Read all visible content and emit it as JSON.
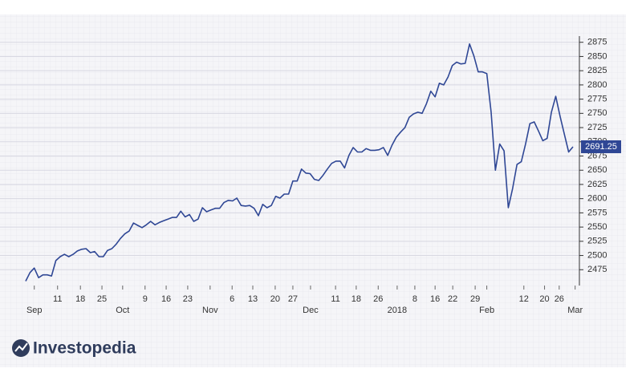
{
  "chart_data": {
    "type": "line",
    "brand": "Investopedia",
    "color": "#2f4795",
    "values": [
      2455,
      2470,
      2478,
      2461,
      2466,
      2466,
      2464,
      2491,
      2498,
      2502,
      2498,
      2502,
      2508,
      2511,
      2512,
      2505,
      2507,
      2498,
      2498,
      2509,
      2512,
      2520,
      2530,
      2538,
      2543,
      2557,
      2553,
      2549,
      2554,
      2560,
      2554,
      2558,
      2561,
      2564,
      2567,
      2567,
      2578,
      2568,
      2572,
      2560,
      2564,
      2584,
      2577,
      2580,
      2583,
      2583,
      2593,
      2597,
      2596,
      2601,
      2588,
      2587,
      2588,
      2583,
      2570,
      2590,
      2584,
      2588,
      2604,
      2601,
      2608,
      2608,
      2631,
      2631,
      2652,
      2645,
      2644,
      2634,
      2632,
      2641,
      2652,
      2662,
      2666,
      2666,
      2654,
      2676,
      2690,
      2682,
      2682,
      2688,
      2685,
      2685,
      2686,
      2690,
      2676,
      2694,
      2708,
      2717,
      2725,
      2743,
      2749,
      2752,
      2750,
      2767,
      2789,
      2779,
      2803,
      2800,
      2814,
      2834,
      2840,
      2837,
      2838,
      2872,
      2851,
      2823,
      2823,
      2820,
      2752,
      2650,
      2696,
      2684,
      2584,
      2618,
      2660,
      2665,
      2696,
      2732,
      2735,
      2719,
      2702,
      2706,
      2752,
      2780,
      2745,
      2713,
      2682,
      2691.25
    ],
    "xlim": [
      0,
      127
    ],
    "xticks": [
      {
        "value": 2,
        "label": "Sep"
      },
      {
        "value": 7.4,
        "label": "11"
      },
      {
        "value": 12.7,
        "label": "18"
      },
      {
        "value": 17.7,
        "label": "25"
      },
      {
        "value": 22.5,
        "label": "Oct"
      },
      {
        "value": 27.7,
        "label": "9"
      },
      {
        "value": 32.6,
        "label": "16"
      },
      {
        "value": 37.6,
        "label": "23"
      },
      {
        "value": 42.8,
        "label": "Nov"
      },
      {
        "value": 47.9,
        "label": "6"
      },
      {
        "value": 52.7,
        "label": "13"
      },
      {
        "value": 57.9,
        "label": "20"
      },
      {
        "value": 62,
        "label": "27"
      },
      {
        "value": 66.1,
        "label": "Dec"
      },
      {
        "value": 71.9,
        "label": "11"
      },
      {
        "value": 76.7,
        "label": "18"
      },
      {
        "value": 81.8,
        "label": "26"
      },
      {
        "value": 86.2,
        "label": "2018"
      },
      {
        "value": 90.3,
        "label": "8"
      },
      {
        "value": 95,
        "label": "16"
      },
      {
        "value": 99.1,
        "label": "22"
      },
      {
        "value": 104.3,
        "label": "29"
      },
      {
        "value": 107,
        "label": "Feb"
      },
      {
        "value": 115.6,
        "label": "12"
      },
      {
        "value": 120.4,
        "label": "20"
      },
      {
        "value": 123.8,
        "label": "26"
      },
      {
        "value": 127.5,
        "label": "Mar"
      }
    ],
    "ylim": [
      2450,
      2900
    ],
    "yticks": [
      2475,
      2500,
      2525,
      2550,
      2575,
      2600,
      2625,
      2650,
      2675,
      2700,
      2725,
      2750,
      2775,
      2800,
      2825,
      2850,
      2875
    ],
    "grid": true
  }
}
